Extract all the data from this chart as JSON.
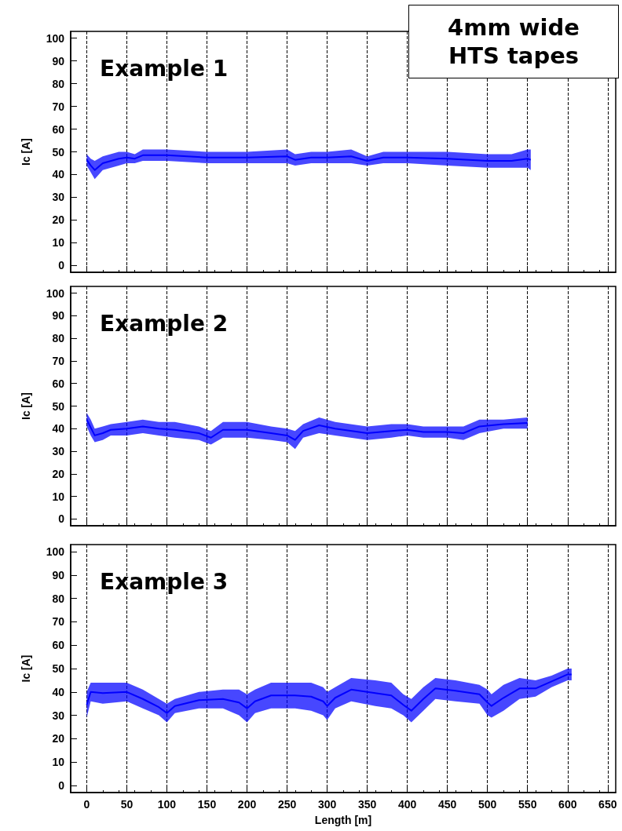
{
  "chart_data": [
    {
      "type": "line",
      "title": "Example 1",
      "ylabel": "Ic [A]",
      "annotations": [
        "4mm wide HTS tapes"
      ],
      "xlim": [
        -20,
        660
      ],
      "xticks": [
        0,
        50,
        100,
        150,
        200,
        250,
        300,
        350,
        400,
        450,
        500,
        550,
        600,
        650
      ],
      "ylim": [
        -3,
        103
      ],
      "yticks": [
        0,
        10,
        20,
        30,
        40,
        50,
        60,
        70,
        80,
        90,
        100
      ],
      "grid": "x",
      "tick_labels": "y",
      "marker": "none",
      "series": [
        {
          "color": "#0000ff",
          "x": [
            0,
            5,
            10,
            20,
            40,
            50,
            60,
            70,
            100,
            150,
            200,
            250,
            260,
            280,
            300,
            330,
            350,
            370,
            400,
            450,
            500,
            530,
            550,
            554
          ],
          "values": [
            46.5,
            44,
            42,
            45,
            47,
            47.5,
            47,
            48.5,
            48.5,
            47.5,
            47.5,
            48,
            46.5,
            47.5,
            47.5,
            48,
            46,
            47.5,
            47.5,
            47,
            46,
            46,
            47,
            46.5
          ],
          "lower": [
            44,
            41,
            38,
            42,
            44,
            45,
            45,
            46,
            46,
            45,
            45,
            45,
            44,
            45,
            45,
            45,
            44,
            45,
            45,
            44,
            43,
            43,
            43,
            42
          ],
          "upper": [
            49,
            47,
            46,
            48,
            50,
            50,
            49,
            51,
            51,
            50,
            50,
            51,
            49,
            50,
            50,
            51,
            48,
            50,
            50,
            50,
            49,
            49,
            51,
            51
          ]
        }
      ]
    },
    {
      "type": "line",
      "title": "Example 2",
      "ylabel": "Ic [A]",
      "xlim": [
        -20,
        660
      ],
      "xticks": [
        0,
        50,
        100,
        150,
        200,
        250,
        300,
        350,
        400,
        450,
        500,
        550,
        600,
        650
      ],
      "ylim": [
        -3,
        103
      ],
      "yticks": [
        0,
        10,
        20,
        30,
        40,
        50,
        60,
        70,
        80,
        90,
        100
      ],
      "grid": "x",
      "tick_labels": "y",
      "marker": "none",
      "series": [
        {
          "color": "#0000ff",
          "x": [
            0,
            5,
            10,
            20,
            30,
            50,
            70,
            90,
            110,
            140,
            155,
            170,
            200,
            230,
            250,
            260,
            270,
            290,
            310,
            350,
            380,
            400,
            420,
            450,
            470,
            490,
            520,
            550
          ],
          "values": [
            44,
            40.5,
            37,
            38,
            39.5,
            40,
            41,
            40,
            39.5,
            38,
            36,
            39.5,
            39.5,
            38,
            37,
            35,
            39,
            41.5,
            40,
            38,
            39,
            39.5,
            38.5,
            38.5,
            38,
            41,
            42,
            42.5
          ],
          "lower": [
            41,
            37,
            34,
            35,
            37,
            37,
            38,
            37,
            36,
            35,
            33,
            36,
            36,
            35,
            34,
            31,
            36,
            38,
            37,
            35,
            36,
            37,
            36,
            36,
            35,
            38,
            40,
            40
          ],
          "upper": [
            47,
            44,
            40,
            41,
            42,
            43,
            44,
            43,
            43,
            41,
            39,
            43,
            43,
            41,
            40,
            39,
            42,
            45,
            43,
            41,
            42,
            42,
            41,
            41,
            41,
            44,
            44,
            45
          ]
        }
      ]
    },
    {
      "type": "line",
      "title": "Example 3",
      "ylabel": "Ic [A]",
      "xlabel": "Length [m]",
      "xlim": [
        -20,
        660
      ],
      "xticks": [
        0,
        50,
        100,
        150,
        200,
        250,
        300,
        350,
        400,
        450,
        500,
        550,
        600,
        650
      ],
      "ylim": [
        -3,
        103
      ],
      "yticks": [
        0,
        10,
        20,
        30,
        40,
        50,
        60,
        70,
        80,
        90,
        100
      ],
      "grid": "x",
      "marker": "none",
      "series": [
        {
          "color": "#0000ff",
          "x": [
            0,
            5,
            20,
            50,
            70,
            90,
            100,
            110,
            140,
            170,
            190,
            200,
            210,
            230,
            260,
            280,
            295,
            300,
            310,
            330,
            360,
            380,
            395,
            405,
            420,
            435,
            460,
            490,
            500,
            505,
            520,
            540,
            560,
            580,
            600,
            605
          ],
          "values": [
            34.5,
            40,
            39.5,
            40,
            37,
            33.5,
            31,
            34,
            36.5,
            37,
            35.5,
            33,
            36,
            38.5,
            38.5,
            38,
            36,
            34,
            37.5,
            41,
            39.5,
            38.5,
            34.5,
            32,
            37,
            41.5,
            40.5,
            39,
            35.5,
            34,
            37.5,
            41.5,
            41.5,
            44.5,
            47.5,
            47.5
          ],
          "lower": [
            29,
            36,
            35,
            36,
            33,
            30,
            27,
            31,
            33,
            33,
            30,
            27,
            31,
            33,
            33,
            32,
            30,
            28,
            33,
            36,
            34,
            33,
            30,
            27,
            32,
            37,
            36,
            35,
            30,
            29,
            32,
            37,
            38,
            42,
            45,
            45
          ],
          "upper": [
            40,
            44,
            44,
            44,
            41,
            37,
            35,
            37,
            40,
            41,
            41,
            39,
            41,
            44,
            44,
            44,
            42,
            40,
            42,
            46,
            45,
            44,
            39,
            37,
            42,
            46,
            45,
            43,
            41,
            39,
            43,
            46,
            45,
            47,
            50,
            50
          ]
        }
      ]
    }
  ]
}
